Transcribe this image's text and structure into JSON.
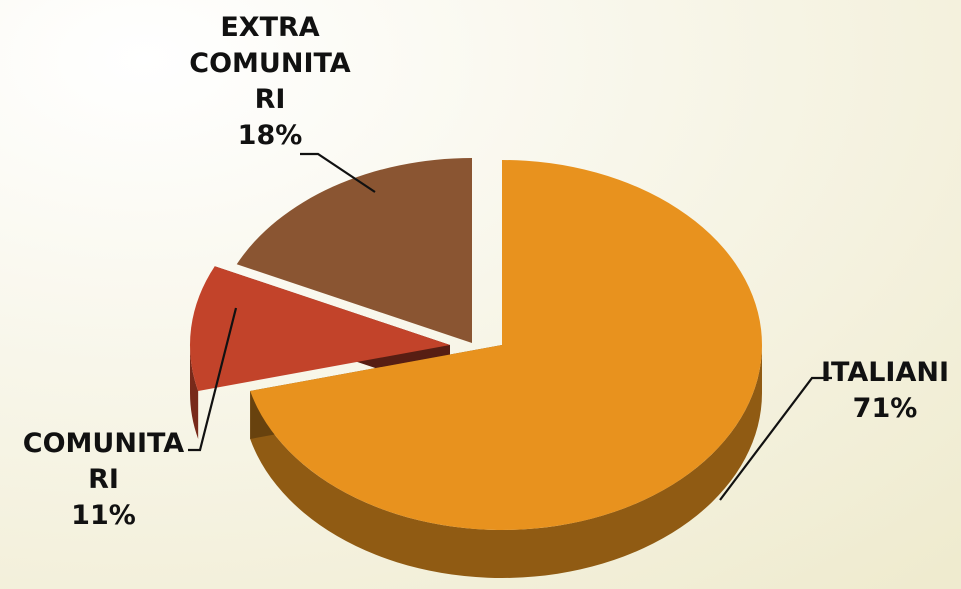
{
  "chart_data": {
    "type": "pie",
    "title": "",
    "slices": [
      {
        "label": "ITALIANI",
        "value": 71,
        "percent_label": "71%",
        "color": "#E8921E"
      },
      {
        "label": "COMUNITA RI",
        "value": 11,
        "percent_label": "11%",
        "color": "#C2432A"
      },
      {
        "label": "EXTRA COMUNITA RI",
        "value": 18,
        "percent_label": "18%",
        "color": "#8A5532"
      }
    ],
    "label_text": {
      "ITALIANI": "ITALIANI",
      "COMUNITA RI": "COMUNITA\nRI",
      "EXTRA COMUNITA RI": "EXTRA\nCOMUNITA\nRI"
    },
    "style": "3d-exploded",
    "legend": "none",
    "background": "#FAF8EC"
  }
}
